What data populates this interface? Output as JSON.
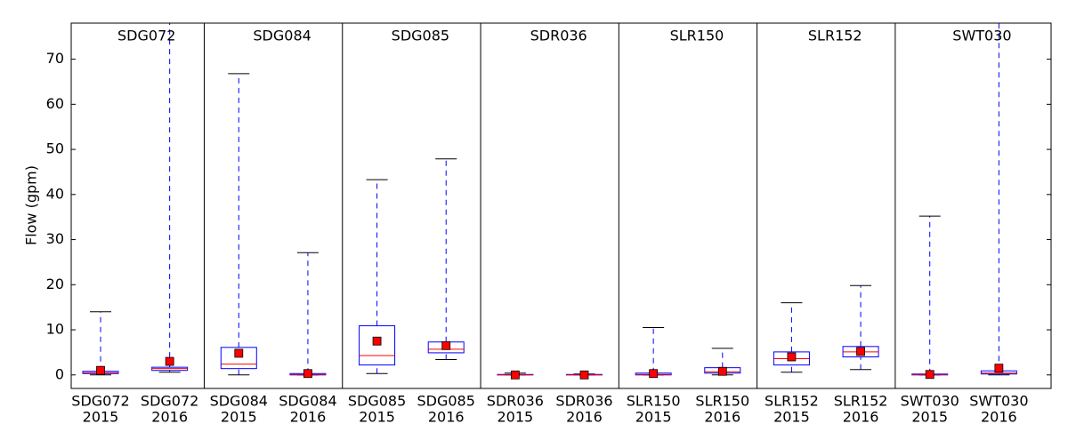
{
  "chart_data": {
    "type": "box",
    "ylabel": "Flow (gpm)",
    "panels": [
      "SDG072",
      "SDG084",
      "SDG085",
      "SDR036",
      "SLR150",
      "SLR152",
      "SWT030"
    ],
    "categories": [
      [
        "SDG072",
        "2015"
      ],
      [
        "SDG072",
        "2016"
      ],
      [
        "SDG084",
        "2015"
      ],
      [
        "SDG084",
        "2016"
      ],
      [
        "SDG085",
        "2015"
      ],
      [
        "SDG085",
        "2016"
      ],
      [
        "SDR036",
        "2015"
      ],
      [
        "SDR036",
        "2016"
      ],
      [
        "SLR150",
        "2015"
      ],
      [
        "SLR150",
        "2016"
      ],
      [
        "SLR152",
        "2015"
      ],
      [
        "SLR152",
        "2016"
      ],
      [
        "SWT030",
        "2015"
      ],
      [
        "SWT030",
        "2016"
      ]
    ],
    "boxes": [
      {
        "low": 0,
        "q1": 0.3,
        "median": 0.5,
        "q3": 0.8,
        "high": 14.0,
        "mean": 1.0
      },
      {
        "low": 0.6,
        "q1": 1.0,
        "median": 1.4,
        "q3": 1.7,
        "high": 85,
        "mean": 3.0
      },
      {
        "low": 0,
        "q1": 1.4,
        "median": 2.4,
        "q3": 6.1,
        "high": 66.8,
        "mean": 4.8
      },
      {
        "low": 0,
        "q1": 0,
        "median": 0.1,
        "q3": 0.3,
        "high": 27.1,
        "mean": 0.3
      },
      {
        "low": 0.3,
        "q1": 2.2,
        "median": 4.3,
        "q3": 10.9,
        "high": 43.3,
        "mean": 7.5
      },
      {
        "low": 3.4,
        "q1": 4.9,
        "median": 5.7,
        "q3": 7.3,
        "high": 47.9,
        "mean": 6.5
      },
      {
        "low": 0,
        "q1": 0,
        "median": 0,
        "q3": 0.1,
        "high": 0.4,
        "mean": 0
      },
      {
        "low": 0,
        "q1": 0,
        "median": 0,
        "q3": 0.1,
        "high": 0.2,
        "mean": 0
      },
      {
        "low": 0,
        "q1": 0,
        "median": 0.1,
        "q3": 0.4,
        "high": 10.5,
        "mean": 0.3
      },
      {
        "low": 0,
        "q1": 0.4,
        "median": 0.7,
        "q3": 1.6,
        "high": 5.9,
        "mean": 0.8
      },
      {
        "low": 0.6,
        "q1": 2.2,
        "median": 3.6,
        "q3": 5.1,
        "high": 16.0,
        "mean": 4.0
      },
      {
        "low": 1.2,
        "q1": 4.0,
        "median": 5.1,
        "q3": 6.3,
        "high": 19.8,
        "mean": 5.2
      },
      {
        "low": 0,
        "q1": 0,
        "median": 0.1,
        "q3": 0.2,
        "high": 35.2,
        "mean": 0.1
      },
      {
        "low": 0,
        "q1": 0.2,
        "median": 0.4,
        "q3": 0.9,
        "high": 85,
        "mean": 1.5
      }
    ],
    "box_color": "#0000ff",
    "median_color": "#ff0000",
    "mean_color": "#ff0000",
    "cap_color": "#000000",
    "ylim": [
      -3,
      78
    ],
    "yticks": [
      0,
      10,
      20,
      30,
      40,
      50,
      60,
      70
    ]
  }
}
